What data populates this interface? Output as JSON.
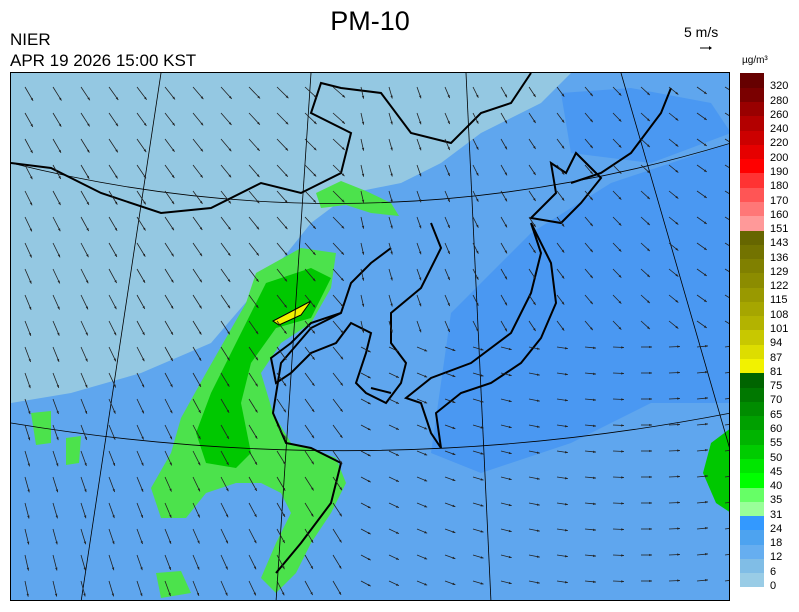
{
  "title": "PM-10",
  "organization": "NIER",
  "timestamp": "APR 19 2026 15:00 KST",
  "wind_scale": {
    "label": "5 m/s",
    "icon": "arrow-right-icon"
  },
  "legend": {
    "unit": "µg/m³",
    "labels": [
      "0",
      "6",
      "12",
      "18",
      "24",
      "31",
      "35",
      "40",
      "45",
      "50",
      "55",
      "60",
      "65",
      "70",
      "75",
      "81",
      "87",
      "94",
      "101",
      "108",
      "115",
      "122",
      "129",
      "136",
      "143",
      "151",
      "160",
      "170",
      "180",
      "190",
      "200",
      "220",
      "240",
      "260",
      "280",
      "320"
    ],
    "colors": [
      "#99cce6",
      "#80bde6",
      "#66aef0",
      "#4da3f0",
      "#3399ff",
      "#99ff99",
      "#66ff66",
      "#00ff00",
      "#00e600",
      "#00cc00",
      "#00b400",
      "#00a000",
      "#008c00",
      "#007800",
      "#006400",
      "#f2f200",
      "#dddd00",
      "#c8c800",
      "#b3b300",
      "#a6a600",
      "#999900",
      "#8c8c00",
      "#808000",
      "#737300",
      "#666600",
      "#ff9999",
      "#ff7777",
      "#ff5555",
      "#ff3333",
      "#ff0000",
      "#e60000",
      "#cc0000",
      "#b30000",
      "#990000",
      "#7a0000",
      "#660000"
    ]
  },
  "map_colors": {
    "background": "#94c8e2",
    "low": "#5fa6ee",
    "mid": "#4a98f2",
    "green_light": "#66ff66",
    "green": "#00dc00",
    "green_dark": "#00b400",
    "yellow": "#f2f200"
  }
}
